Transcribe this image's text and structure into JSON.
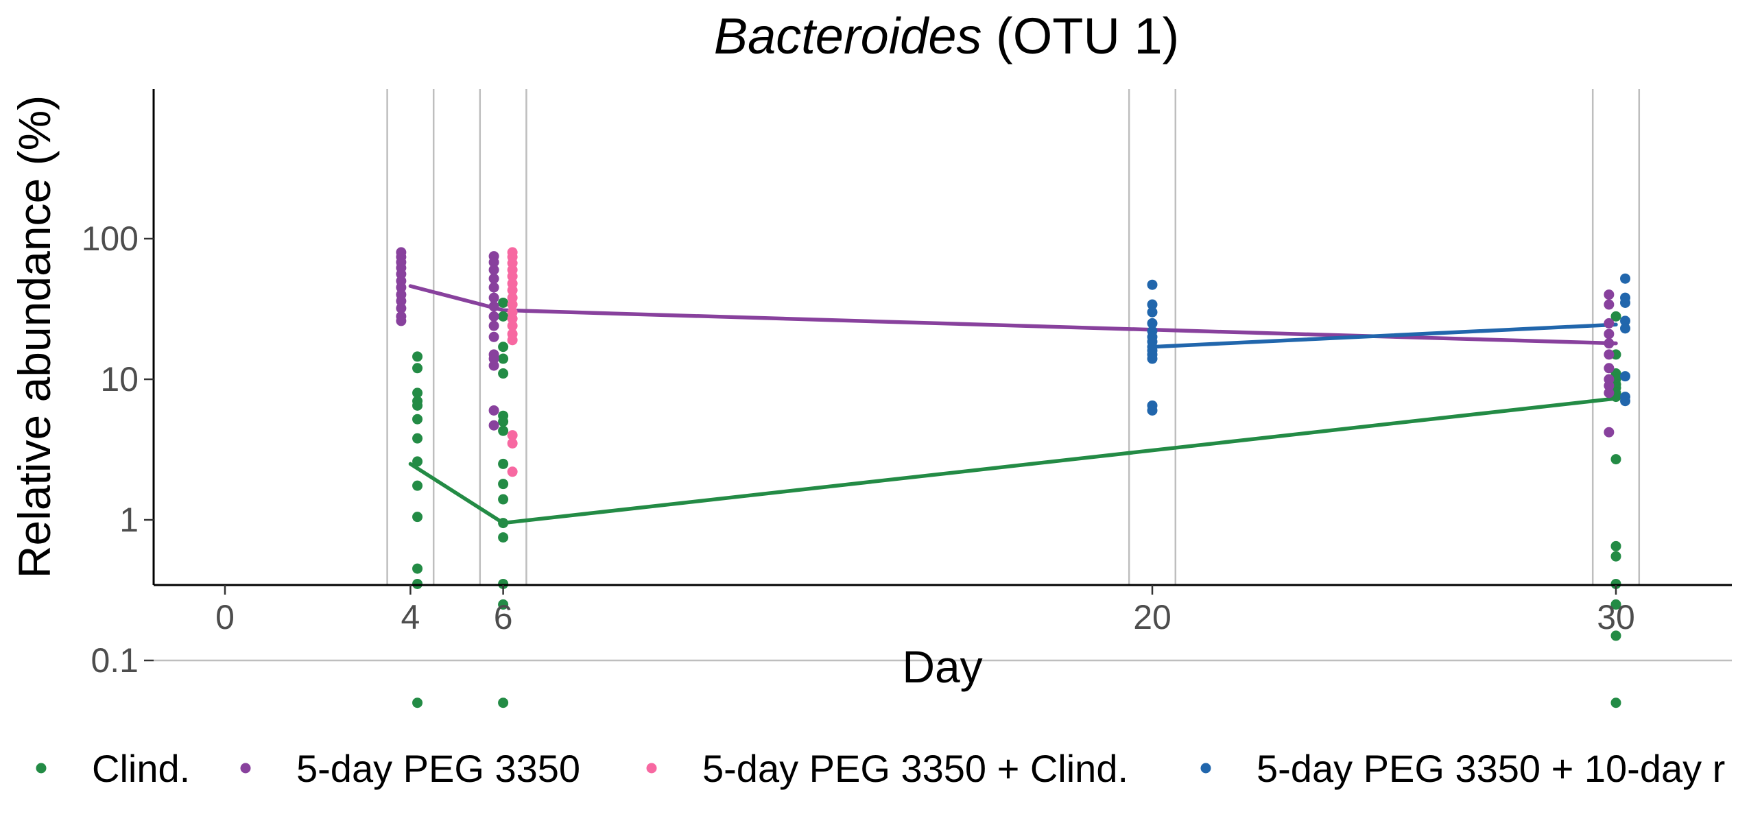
{
  "chart_data": {
    "type": "scatter",
    "title": {
      "italic": "Bacteroides",
      "rest": " (OTU 1)"
    },
    "xlabel": "Day",
    "ylabel": "Relative abundance (%)",
    "x_ticks": [
      0,
      4,
      6,
      20,
      30
    ],
    "x_tick_labels": [
      "0",
      "4",
      "6",
      "20",
      "30"
    ],
    "xlim": [
      -1.5,
      32.5
    ],
    "y_scale": "log",
    "y_ticks": [
      0.1,
      1,
      10,
      100
    ],
    "y_tick_labels": [
      "0.1",
      "1",
      "10",
      "100"
    ],
    "ylim": [
      0.035,
      110
    ],
    "reference_lines": {
      "vertical_x": [
        3.5,
        4.5,
        5.5,
        6.5,
        19.5,
        20.5,
        29.5,
        30.5
      ],
      "horizontal_y": [
        0.1
      ]
    },
    "legend_position": "bottom",
    "series": [
      {
        "name": "Clind.",
        "color": "#238b45",
        "points": [
          {
            "x": 4.15,
            "y": 14.5
          },
          {
            "x": 4.15,
            "y": 12
          },
          {
            "x": 4.15,
            "y": 8
          },
          {
            "x": 4.15,
            "y": 7
          },
          {
            "x": 4.15,
            "y": 6.5
          },
          {
            "x": 4.15,
            "y": 5.2
          },
          {
            "x": 4.15,
            "y": 3.8
          },
          {
            "x": 4.15,
            "y": 2.6
          },
          {
            "x": 4.15,
            "y": 1.75
          },
          {
            "x": 4.15,
            "y": 1.05
          },
          {
            "x": 4.15,
            "y": 0.45
          },
          {
            "x": 4.15,
            "y": 0.35
          },
          {
            "x": 4.15,
            "y": 0.05
          },
          {
            "x": 6.0,
            "y": 35
          },
          {
            "x": 6.0,
            "y": 28
          },
          {
            "x": 6.0,
            "y": 17
          },
          {
            "x": 6.0,
            "y": 14
          },
          {
            "x": 6.0,
            "y": 11
          },
          {
            "x": 6.0,
            "y": 5.5
          },
          {
            "x": 6.0,
            "y": 5
          },
          {
            "x": 6.0,
            "y": 4.3
          },
          {
            "x": 6.0,
            "y": 2.5
          },
          {
            "x": 6.0,
            "y": 1.8
          },
          {
            "x": 6.0,
            "y": 1.4
          },
          {
            "x": 6.0,
            "y": 0.95
          },
          {
            "x": 6.0,
            "y": 0.75
          },
          {
            "x": 6.0,
            "y": 0.35
          },
          {
            "x": 6.0,
            "y": 0.25
          },
          {
            "x": 6.0,
            "y": 0.05
          },
          {
            "x": 30.0,
            "y": 28
          },
          {
            "x": 30.0,
            "y": 15
          },
          {
            "x": 30.0,
            "y": 11
          },
          {
            "x": 30.0,
            "y": 10
          },
          {
            "x": 30.0,
            "y": 9.2
          },
          {
            "x": 30.0,
            "y": 8.7
          },
          {
            "x": 30.0,
            "y": 8
          },
          {
            "x": 30.0,
            "y": 7.5
          },
          {
            "x": 30.0,
            "y": 2.7
          },
          {
            "x": 30.0,
            "y": 0.65
          },
          {
            "x": 30.0,
            "y": 0.55
          },
          {
            "x": 30.0,
            "y": 0.35
          },
          {
            "x": 30.0,
            "y": 0.25
          },
          {
            "x": 30.0,
            "y": 0.15
          },
          {
            "x": 30.0,
            "y": 0.05
          }
        ],
        "trend": [
          {
            "x": 4,
            "y": 2.5
          },
          {
            "x": 6,
            "y": 0.95
          },
          {
            "x": 30,
            "y": 7.3
          }
        ]
      },
      {
        "name": "5-day PEG 3350",
        "color": "#88419d",
        "points": [
          {
            "x": 3.8,
            "y": 80
          },
          {
            "x": 3.8,
            "y": 74
          },
          {
            "x": 3.8,
            "y": 68
          },
          {
            "x": 3.8,
            "y": 62
          },
          {
            "x": 3.8,
            "y": 56
          },
          {
            "x": 3.8,
            "y": 50
          },
          {
            "x": 3.8,
            "y": 45
          },
          {
            "x": 3.8,
            "y": 40
          },
          {
            "x": 3.8,
            "y": 36
          },
          {
            "x": 3.8,
            "y": 32
          },
          {
            "x": 3.8,
            "y": 28
          },
          {
            "x": 3.8,
            "y": 26
          },
          {
            "x": 5.8,
            "y": 75
          },
          {
            "x": 5.8,
            "y": 68
          },
          {
            "x": 5.8,
            "y": 60
          },
          {
            "x": 5.8,
            "y": 52
          },
          {
            "x": 5.8,
            "y": 45
          },
          {
            "x": 5.8,
            "y": 38
          },
          {
            "x": 5.8,
            "y": 33
          },
          {
            "x": 5.8,
            "y": 28
          },
          {
            "x": 5.8,
            "y": 24
          },
          {
            "x": 5.8,
            "y": 20
          },
          {
            "x": 5.8,
            "y": 15
          },
          {
            "x": 5.8,
            "y": 14
          },
          {
            "x": 5.8,
            "y": 12.5
          },
          {
            "x": 5.8,
            "y": 6
          },
          {
            "x": 5.8,
            "y": 4.7
          },
          {
            "x": 29.85,
            "y": 40
          },
          {
            "x": 29.85,
            "y": 34
          },
          {
            "x": 29.85,
            "y": 25
          },
          {
            "x": 29.85,
            "y": 21
          },
          {
            "x": 29.85,
            "y": 18
          },
          {
            "x": 29.85,
            "y": 15
          },
          {
            "x": 29.85,
            "y": 12
          },
          {
            "x": 29.85,
            "y": 10
          },
          {
            "x": 29.85,
            "y": 9
          },
          {
            "x": 29.85,
            "y": 8
          },
          {
            "x": 29.85,
            "y": 4.2
          }
        ],
        "trend": [
          {
            "x": 4,
            "y": 46
          },
          {
            "x": 6,
            "y": 31
          },
          {
            "x": 20,
            "y": 22.5
          },
          {
            "x": 30,
            "y": 18
          }
        ]
      },
      {
        "name": "5-day PEG 3350 + Clind.",
        "color": "#f768a1",
        "points": [
          {
            "x": 6.2,
            "y": 80
          },
          {
            "x": 6.2,
            "y": 74
          },
          {
            "x": 6.2,
            "y": 67
          },
          {
            "x": 6.2,
            "y": 60
          },
          {
            "x": 6.2,
            "y": 54
          },
          {
            "x": 6.2,
            "y": 48
          },
          {
            "x": 6.2,
            "y": 43
          },
          {
            "x": 6.2,
            "y": 38
          },
          {
            "x": 6.2,
            "y": 34
          },
          {
            "x": 6.2,
            "y": 30
          },
          {
            "x": 6.2,
            "y": 27
          },
          {
            "x": 6.2,
            "y": 24
          },
          {
            "x": 6.2,
            "y": 21
          },
          {
            "x": 6.2,
            "y": 19
          },
          {
            "x": 6.2,
            "y": 4
          },
          {
            "x": 6.2,
            "y": 3.5
          },
          {
            "x": 6.2,
            "y": 2.2
          }
        ],
        "trend": []
      },
      {
        "name": "5-day PEG 3350 + 10-day r",
        "color": "#2166ac",
        "points": [
          {
            "x": 20.0,
            "y": 47
          },
          {
            "x": 20.0,
            "y": 34
          },
          {
            "x": 20.0,
            "y": 30
          },
          {
            "x": 20.0,
            "y": 25
          },
          {
            "x": 20.0,
            "y": 22
          },
          {
            "x": 20.0,
            "y": 20
          },
          {
            "x": 20.0,
            "y": 18.5
          },
          {
            "x": 20.0,
            "y": 17
          },
          {
            "x": 20.0,
            "y": 16
          },
          {
            "x": 20.0,
            "y": 15
          },
          {
            "x": 20.0,
            "y": 14
          },
          {
            "x": 20.0,
            "y": 6.5
          },
          {
            "x": 20.0,
            "y": 6
          },
          {
            "x": 30.2,
            "y": 52
          },
          {
            "x": 30.2,
            "y": 38
          },
          {
            "x": 30.2,
            "y": 35
          },
          {
            "x": 30.2,
            "y": 26
          },
          {
            "x": 30.2,
            "y": 23
          },
          {
            "x": 30.2,
            "y": 10.5
          },
          {
            "x": 30.2,
            "y": 7.5
          },
          {
            "x": 30.2,
            "y": 7
          }
        ],
        "trend": [
          {
            "x": 20,
            "y": 17
          },
          {
            "x": 30,
            "y": 24.5
          }
        ]
      }
    ]
  }
}
